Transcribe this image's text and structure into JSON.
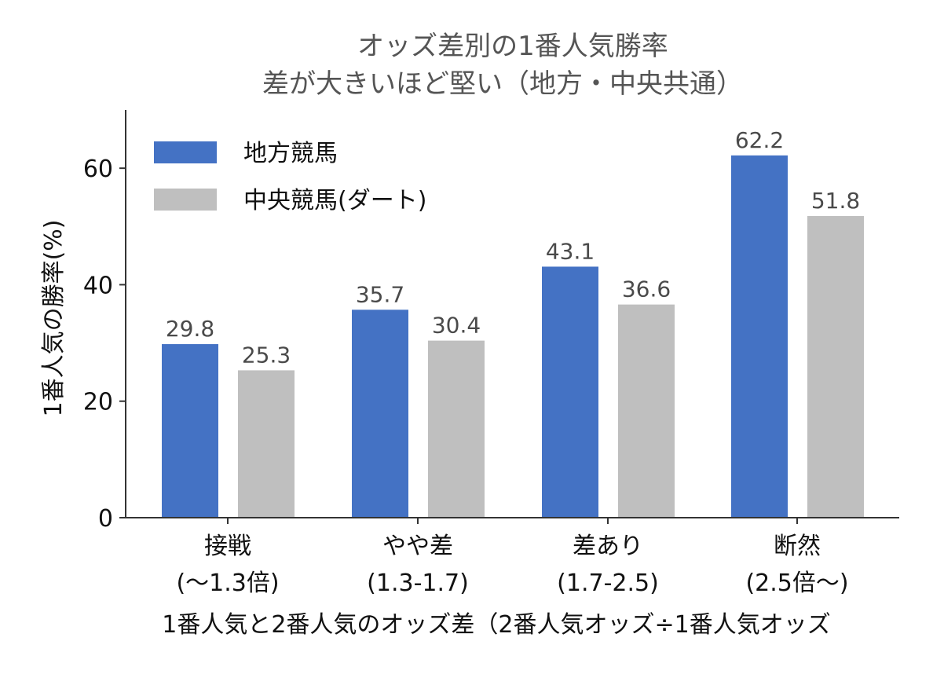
{
  "chart_data": {
    "type": "bar",
    "title_lines": [
      "オッズ差別の1番人気勝率",
      "差が大きいほど堅い（地方・中央共通）"
    ],
    "xlabel": "1番人気と2番人気のオッズ差（2番人気オッズ÷1番人気オッズ",
    "ylabel": "1番人気の勝率(%)",
    "ylim": [
      0,
      70
    ],
    "yticks": [
      0,
      20,
      40,
      60
    ],
    "grid": false,
    "legend_position": "top-left",
    "categories": [
      [
        "接戦",
        "(〜1.3倍)"
      ],
      [
        "やや差",
        "(1.3-1.7)"
      ],
      [
        "差あり",
        "(1.7-2.5)"
      ],
      [
        "断然",
        "(2.5倍〜)"
      ]
    ],
    "series": [
      {
        "name": "地方競馬",
        "color": "#4472c4",
        "values": [
          29.8,
          35.7,
          43.1,
          62.2
        ],
        "labels": [
          "29.8",
          "35.7",
          "43.1",
          "62.2"
        ]
      },
      {
        "name": "中央競馬(ダート)",
        "color": "#bfbfbf",
        "values": [
          25.3,
          30.4,
          36.6,
          51.8
        ],
        "labels": [
          "25.3",
          "30.4",
          "36.6",
          "51.8"
        ]
      }
    ]
  }
}
